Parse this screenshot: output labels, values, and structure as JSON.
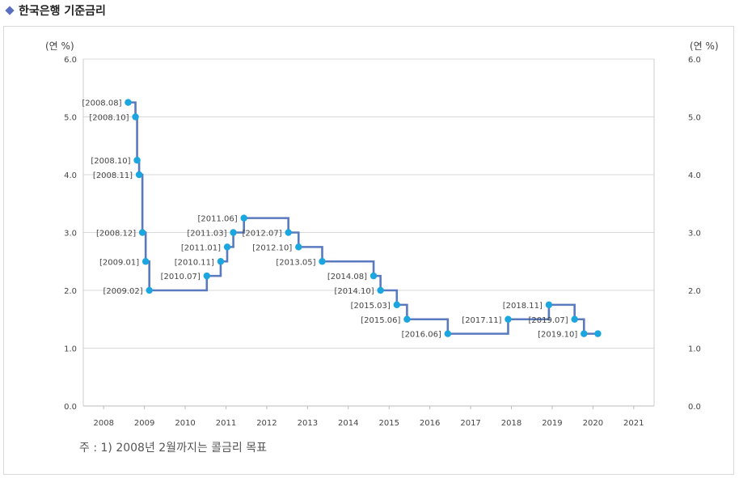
{
  "header": {
    "title": "한국은행 기준금리"
  },
  "note": "주 : 1) 2008년 2월까지는 콜금리 목표",
  "chart_data": {
    "type": "line",
    "step": true,
    "title": "한국은행 기준금리",
    "ylabel_left": "(연 %)",
    "ylabel_right": "(연 %)",
    "ylim": [
      0,
      6
    ],
    "yticks": [
      "0.0",
      "1.0",
      "2.0",
      "3.0",
      "4.0",
      "5.0",
      "6.0"
    ],
    "xlim": [
      2007.5,
      2021.5
    ],
    "xticks": [
      "2008",
      "2009",
      "2010",
      "2011",
      "2012",
      "2013",
      "2014",
      "2015",
      "2016",
      "2017",
      "2018",
      "2019",
      "2020",
      "2021"
    ],
    "grid": true,
    "colors": {
      "line": "#5a7abf",
      "marker": "#1ba6e0",
      "grid": "#d9d9d9"
    },
    "points": [
      {
        "x": 2008.6,
        "y": 5.25,
        "label": "[2008.08]",
        "label_side": "left"
      },
      {
        "x": 2008.78,
        "y": 5.0,
        "label": "[2008.10]",
        "label_side": "left"
      },
      {
        "x": 2008.82,
        "y": 4.25,
        "label": "[2008.10]",
        "label_side": "left"
      },
      {
        "x": 2008.87,
        "y": 4.0,
        "label": "[2008.11]",
        "label_side": "left"
      },
      {
        "x": 2008.95,
        "y": 3.0,
        "label": "[2008.12]",
        "label_side": "left"
      },
      {
        "x": 2009.03,
        "y": 2.5,
        "label": "[2009.01]",
        "label_side": "left"
      },
      {
        "x": 2009.12,
        "y": 2.0,
        "label": "[2009.02]",
        "label_side": "left"
      },
      {
        "x": 2010.53,
        "y": 2.25,
        "label": "[2010.07]",
        "label_side": "left"
      },
      {
        "x": 2010.87,
        "y": 2.5,
        "label": "[2010.11]",
        "label_side": "left"
      },
      {
        "x": 2011.03,
        "y": 2.75,
        "label": "[2011.01]",
        "label_side": "left"
      },
      {
        "x": 2011.18,
        "y": 3.0,
        "label": "[2011.03]",
        "label_side": "left"
      },
      {
        "x": 2011.44,
        "y": 3.25,
        "label": "[2011.06]",
        "label_side": "left"
      },
      {
        "x": 2012.53,
        "y": 3.0,
        "label": "[2012.07]",
        "label_side": "left"
      },
      {
        "x": 2012.78,
        "y": 2.75,
        "label": "[2012.10]",
        "label_side": "left"
      },
      {
        "x": 2013.36,
        "y": 2.5,
        "label": "[2013.05]",
        "label_side": "left"
      },
      {
        "x": 2014.62,
        "y": 2.25,
        "label": "[2014.08]",
        "label_side": "left"
      },
      {
        "x": 2014.79,
        "y": 2.0,
        "label": "[2014.10]",
        "label_side": "left"
      },
      {
        "x": 2015.19,
        "y": 1.75,
        "label": "[2015.03]",
        "label_side": "left"
      },
      {
        "x": 2015.44,
        "y": 1.5,
        "label": "[2015.06]",
        "label_side": "left"
      },
      {
        "x": 2016.44,
        "y": 1.25,
        "label": "[2016.06]",
        "label_side": "left"
      },
      {
        "x": 2017.92,
        "y": 1.5,
        "label": "[2017.11]",
        "label_side": "left"
      },
      {
        "x": 2018.92,
        "y": 1.75,
        "label": "[2018.11]",
        "label_side": "left"
      },
      {
        "x": 2019.55,
        "y": 1.5,
        "label": "[2019.07]",
        "label_side": "left"
      },
      {
        "x": 2019.78,
        "y": 1.25,
        "label": "[2019.10]",
        "label_side": "left"
      },
      {
        "x": 2020.12,
        "y": 1.25,
        "label": "",
        "label_side": "none"
      }
    ]
  }
}
